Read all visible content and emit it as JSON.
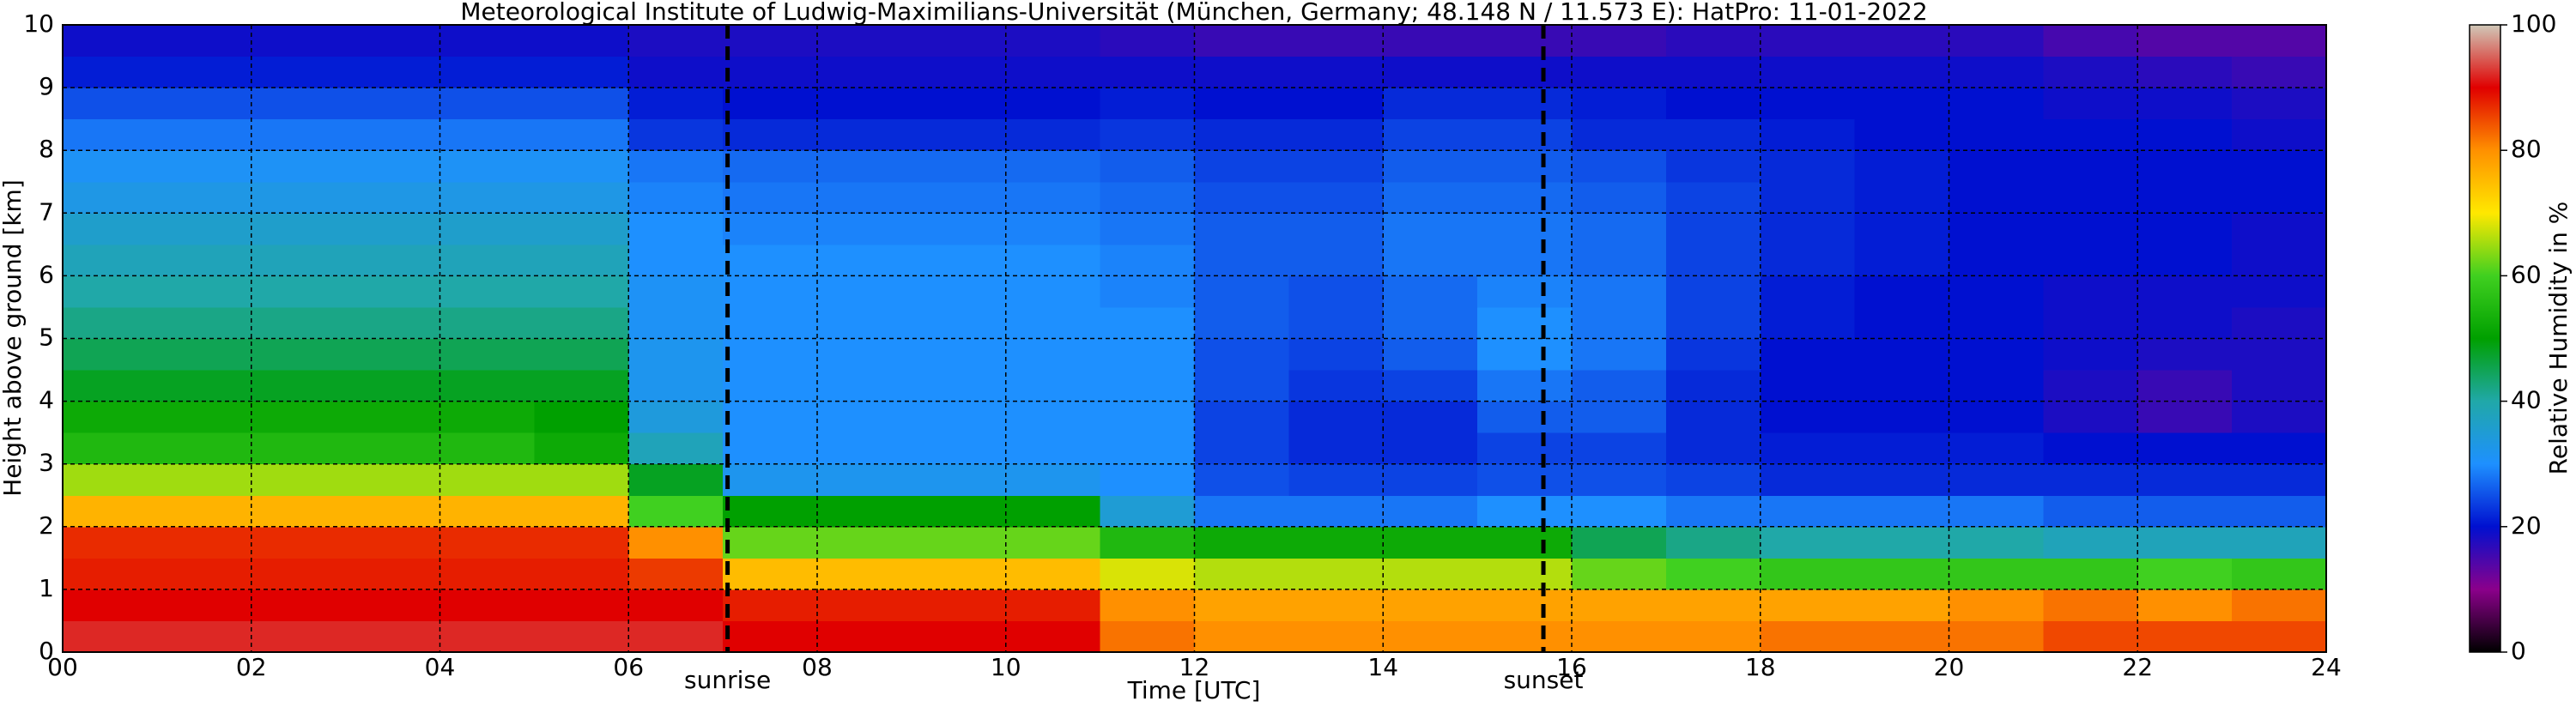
{
  "chart_data": {
    "type": "heatmap",
    "title": "Meteorological Institute of Ludwig-Maximilians-Universität (München, Germany; 48.148 N / 11.573 E):    HatPro: 11-01-2022",
    "xlabel": "Time [UTC]",
    "ylabel": "Height above ground [km]",
    "colorbar_label": "Relative Humidity in %",
    "xlim": [
      0,
      24
    ],
    "ylim": [
      0,
      10
    ],
    "xticks": [
      {
        "value": 0,
        "label": "00"
      },
      {
        "value": 2,
        "label": "02"
      },
      {
        "value": 4,
        "label": "04"
      },
      {
        "value": 6,
        "label": "06"
      },
      {
        "value": 8,
        "label": "08"
      },
      10,
      12,
      14,
      16,
      18,
      20,
      22,
      24
    ],
    "yticks": [
      0,
      1,
      2,
      3,
      4,
      5,
      6,
      7,
      8,
      9,
      10
    ],
    "grid": true,
    "clim": [
      0,
      100
    ],
    "cticks": [
      0,
      20,
      40,
      60,
      80,
      100
    ],
    "colormap": [
      "#000000",
      "#8b008b",
      "#0010d0",
      "#1e90ff",
      "#20a8a8",
      "#00a000",
      "#40d020",
      "#ffe800",
      "#ff9000",
      "#e00000",
      "#d0c8b8"
    ],
    "annotations": [
      {
        "label": "sunrise",
        "x": 7.05
      },
      {
        "label": "sunset",
        "x": 15.7
      }
    ],
    "xbins": [
      0,
      1,
      2,
      3,
      4,
      5,
      6,
      7,
      8,
      9,
      10,
      11,
      12,
      13,
      14,
      15,
      16,
      17,
      18,
      19,
      20,
      21,
      22,
      23,
      24
    ],
    "ybins": [
      0,
      0.5,
      1,
      1.5,
      2,
      2.5,
      3,
      3.5,
      4,
      4.5,
      5,
      5.5,
      6,
      6.5,
      7,
      7.5,
      8,
      8.5,
      9,
      9.5,
      10
    ],
    "values": [
      [
        92,
        92,
        92,
        92,
        92,
        92,
        92,
        90,
        90,
        90,
        90,
        82,
        80,
        80,
        80,
        80,
        80,
        80,
        82,
        82,
        82,
        85,
        85,
        85
      ],
      [
        90,
        90,
        90,
        90,
        90,
        90,
        90,
        88,
        88,
        88,
        88,
        80,
        78,
        78,
        78,
        78,
        78,
        78,
        78,
        78,
        80,
        82,
        80,
        82
      ],
      [
        88,
        88,
        88,
        88,
        88,
        88,
        86,
        75,
        75,
        75,
        75,
        68,
        66,
        66,
        66,
        66,
        62,
        60,
        58,
        58,
        58,
        58,
        60,
        58
      ],
      [
        87,
        87,
        87,
        87,
        87,
        87,
        80,
        62,
        62,
        62,
        62,
        55,
        52,
        52,
        52,
        52,
        45,
        42,
        40,
        40,
        40,
        38,
        38,
        38
      ],
      [
        76,
        76,
        76,
        76,
        76,
        76,
        60,
        50,
        50,
        50,
        50,
        35,
        28,
        28,
        28,
        30,
        30,
        28,
        28,
        28,
        28,
        26,
        26,
        26
      ],
      [
        65,
        65,
        65,
        65,
        65,
        65,
        48,
        32,
        32,
        32,
        32,
        30,
        25,
        24,
        24,
        25,
        25,
        24,
        22,
        22,
        22,
        22,
        22,
        22
      ],
      [
        55,
        55,
        55,
        55,
        55,
        52,
        38,
        30,
        30,
        30,
        30,
        30,
        24,
        22,
        22,
        24,
        24,
        22,
        21,
        21,
        21,
        20,
        20,
        20
      ],
      [
        52,
        52,
        52,
        52,
        52,
        50,
        34,
        30,
        30,
        30,
        30,
        30,
        24,
        22,
        22,
        26,
        26,
        22,
        20,
        20,
        20,
        18,
        16,
        18
      ],
      [
        48,
        48,
        48,
        48,
        48,
        48,
        32,
        30,
        30,
        30,
        30,
        30,
        25,
        23,
        24,
        28,
        26,
        22,
        20,
        20,
        20,
        18,
        16,
        18
      ],
      [
        45,
        45,
        45,
        45,
        45,
        45,
        32,
        30,
        30,
        30,
        30,
        30,
        25,
        24,
        26,
        30,
        28,
        23,
        20,
        20,
        20,
        19,
        18,
        18
      ],
      [
        42,
        42,
        42,
        42,
        42,
        42,
        31,
        30,
        30,
        30,
        30,
        30,
        26,
        25,
        27,
        30,
        28,
        24,
        21,
        20,
        20,
        19,
        19,
        18
      ],
      [
        40,
        40,
        40,
        40,
        40,
        40,
        31,
        30,
        30,
        30,
        30,
        29,
        26,
        25,
        27,
        29,
        28,
        24,
        21,
        20,
        20,
        19,
        19,
        19
      ],
      [
        38,
        38,
        38,
        38,
        38,
        38,
        30,
        30,
        30,
        30,
        30,
        29,
        26,
        26,
        28,
        28,
        27,
        24,
        22,
        21,
        20,
        20,
        20,
        19
      ],
      [
        36,
        36,
        36,
        36,
        36,
        36,
        30,
        29,
        29,
        29,
        29,
        28,
        26,
        26,
        28,
        28,
        27,
        24,
        22,
        21,
        20,
        20,
        20,
        19
      ],
      [
        33,
        33,
        33,
        33,
        33,
        33,
        29,
        28,
        28,
        28,
        28,
        27,
        25,
        25,
        27,
        27,
        26,
        24,
        22,
        21,
        20,
        20,
        20,
        20
      ],
      [
        31,
        31,
        31,
        31,
        31,
        31,
        28,
        27,
        27,
        27,
        27,
        26,
        24,
        24,
        26,
        26,
        25,
        23,
        22,
        21,
        20,
        20,
        20,
        20
      ],
      [
        28,
        28,
        28,
        28,
        28,
        28,
        23,
        22,
        22,
        22,
        22,
        23,
        22,
        22,
        24,
        24,
        22,
        22,
        21,
        20,
        20,
        20,
        20,
        19
      ],
      [
        25,
        25,
        25,
        25,
        25,
        25,
        21,
        20,
        20,
        20,
        20,
        21,
        20,
        20,
        22,
        22,
        21,
        20,
        20,
        20,
        20,
        19,
        19,
        18
      ],
      [
        21,
        21,
        21,
        21,
        21,
        21,
        19,
        19,
        19,
        19,
        19,
        19,
        19,
        19,
        19,
        19,
        19,
        19,
        19,
        19,
        19,
        18,
        17,
        16
      ],
      [
        19,
        19,
        19,
        19,
        19,
        19,
        18,
        18,
        18,
        18,
        18,
        17,
        16,
        16,
        16,
        16,
        16,
        17,
        17,
        17,
        17,
        15,
        14,
        14
      ]
    ]
  }
}
